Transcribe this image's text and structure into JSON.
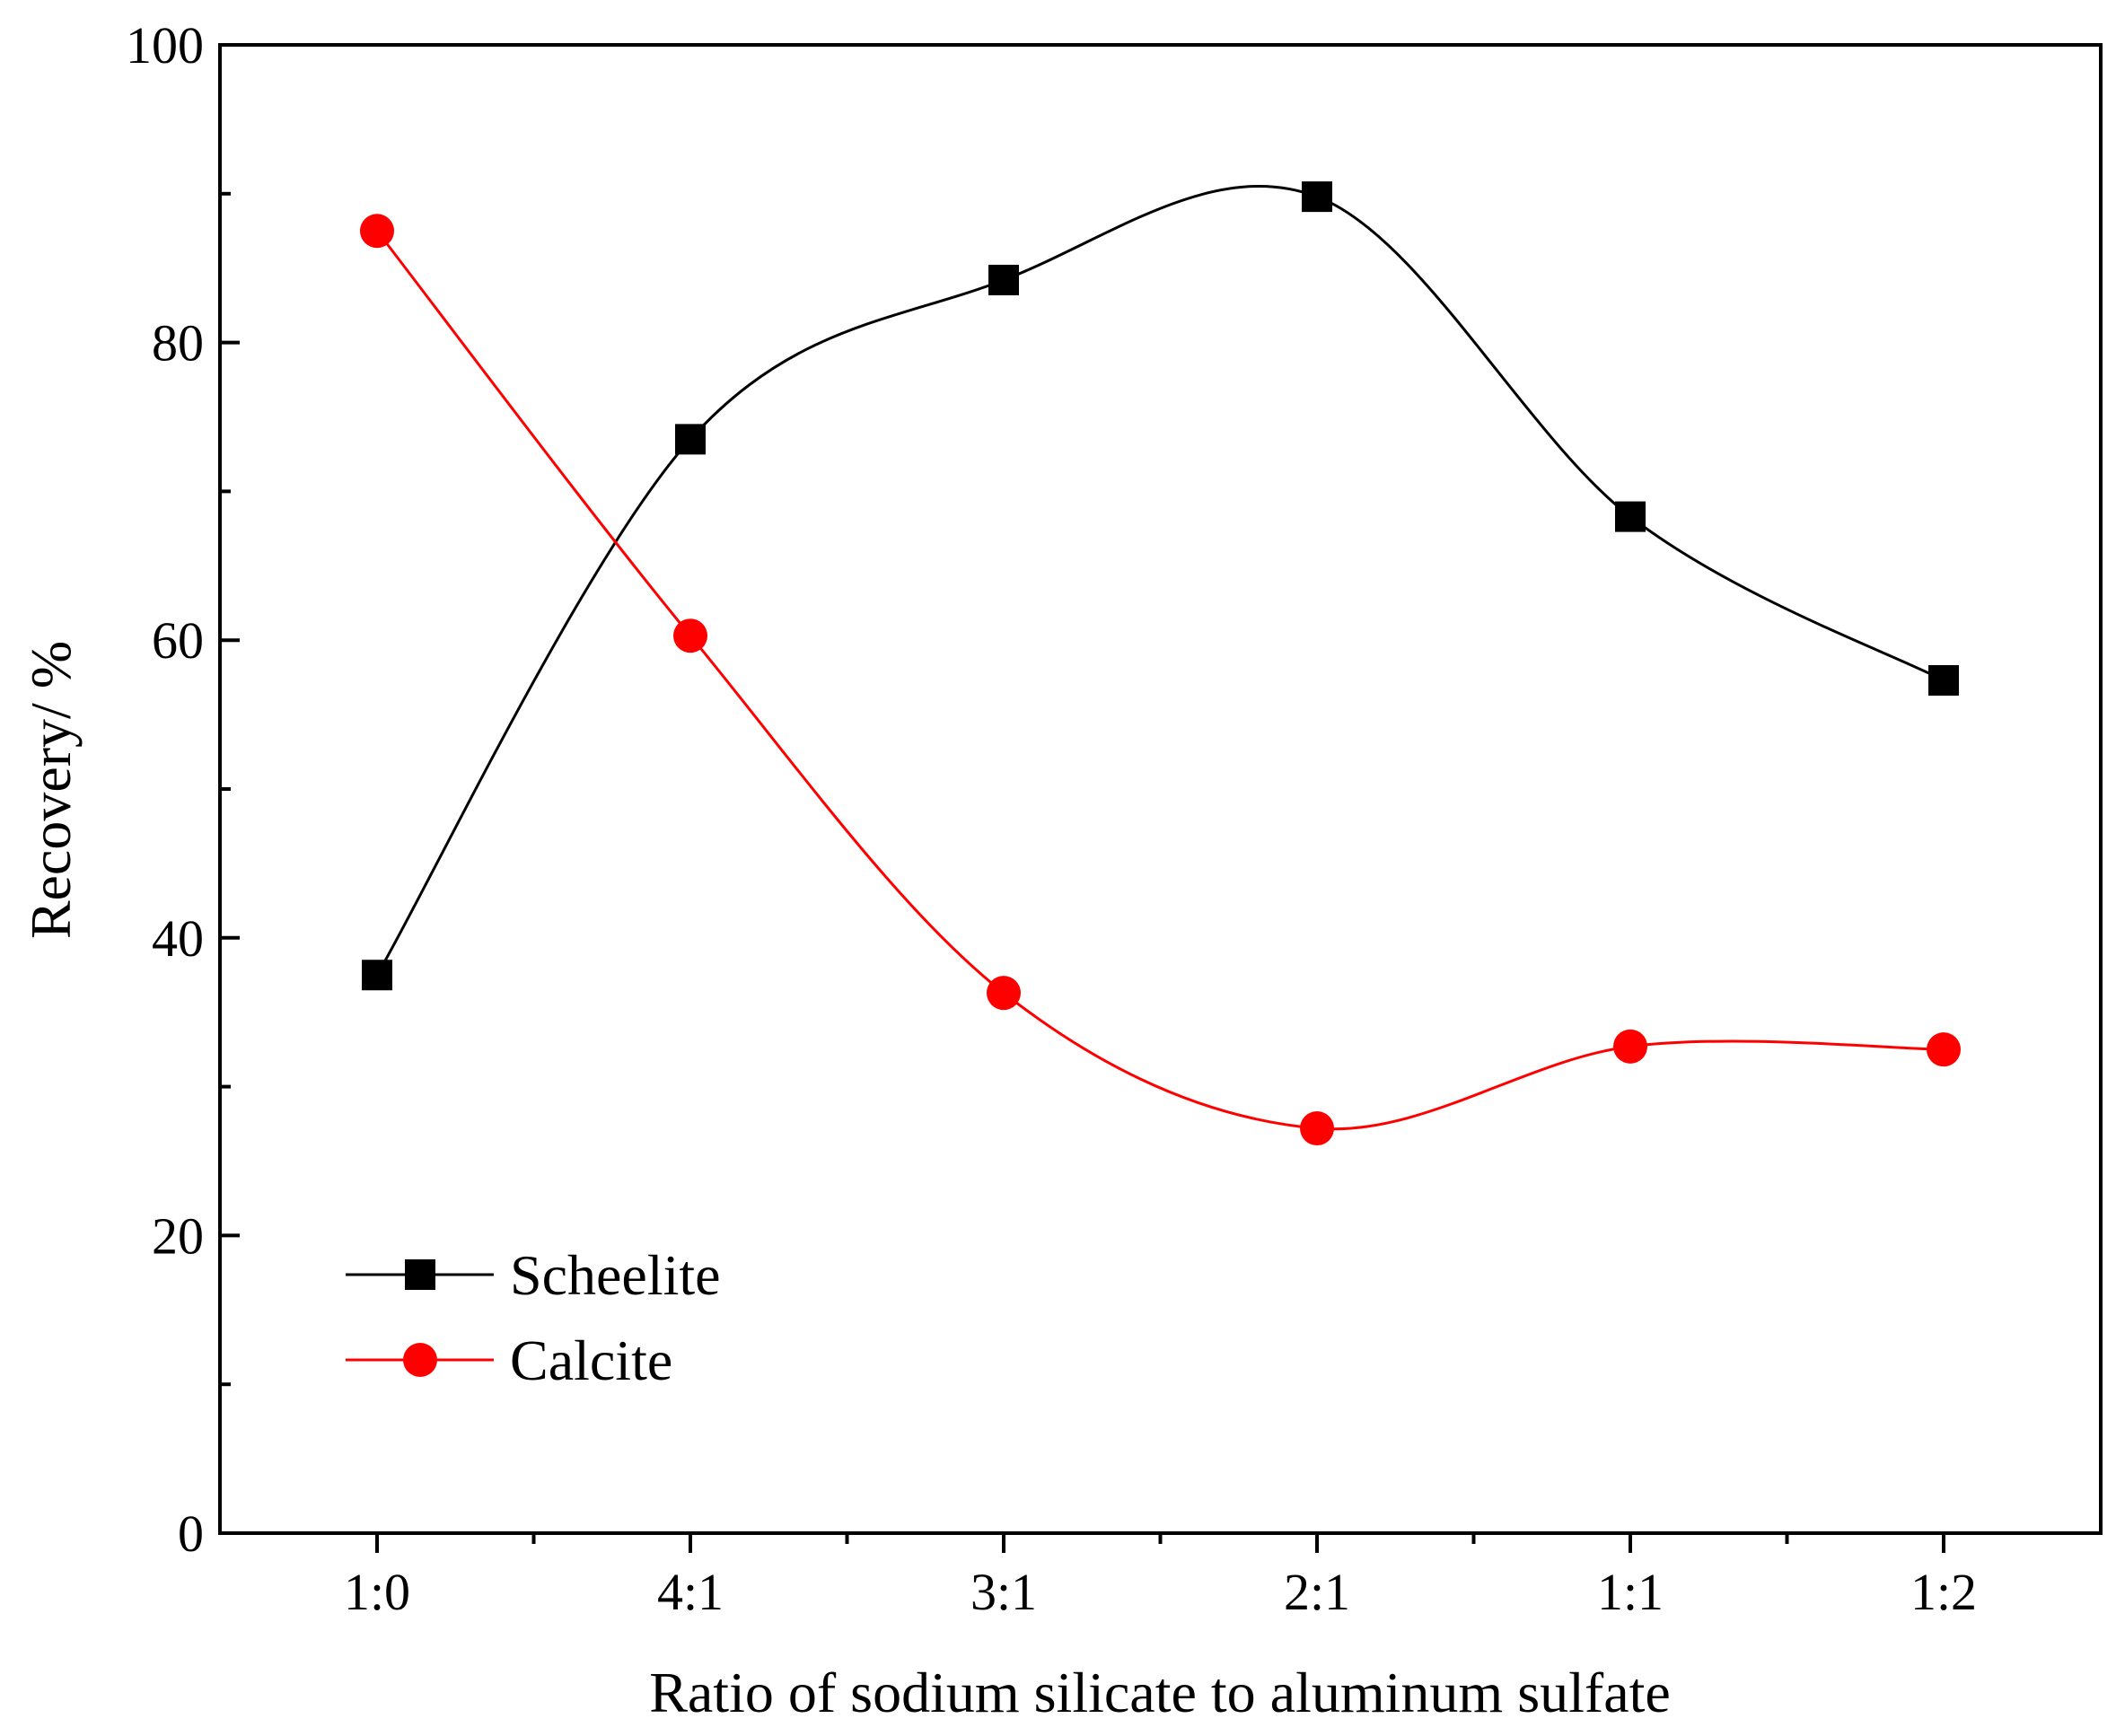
{
  "chart_data": {
    "type": "line",
    "title": "",
    "xlabel": "Ratio of sodium silicate to aluminum sulfate",
    "ylabel": "Recovery/ %",
    "categories": [
      "1:0",
      "4:1",
      "3:1",
      "2:1",
      "1:1",
      "1:2"
    ],
    "ylim": [
      0,
      100
    ],
    "yticks": [
      0,
      20,
      40,
      60,
      80,
      100
    ],
    "grid": false,
    "legend_position": "bottom-left",
    "series": [
      {
        "name": "Scheelite",
        "marker": "square",
        "color": "#000000",
        "values": [
          37.5,
          73.5,
          84.2,
          89.8,
          68.3,
          57.3
        ]
      },
      {
        "name": "Calcite",
        "marker": "circle",
        "color": "#ff0000",
        "values": [
          87.5,
          60.3,
          36.3,
          27.2,
          32.7,
          32.5
        ]
      }
    ]
  }
}
